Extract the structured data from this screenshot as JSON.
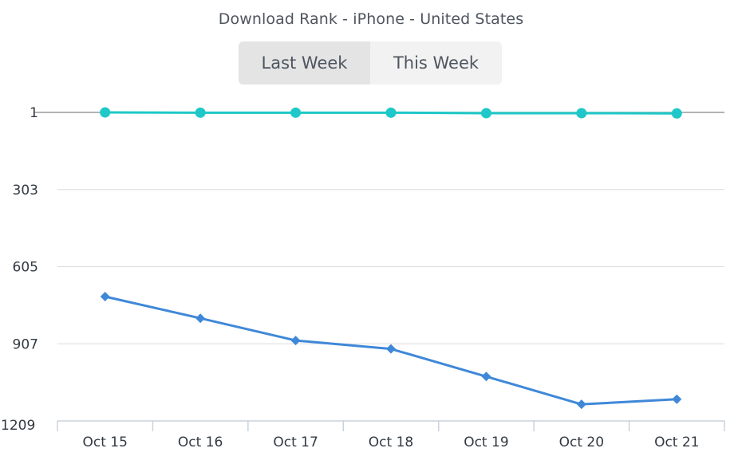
{
  "title": "Download Rank - iPhone - United States",
  "toggle": {
    "options": [
      "Last Week",
      "This Week"
    ],
    "selected": "Last Week"
  },
  "colors": {
    "series_top": "#1ec8c8",
    "series_bottom": "#3f88d8",
    "grid": "#dcdcdc",
    "baseline": "#9a9a9a",
    "axis": "#c9d3dc"
  },
  "chart_data": {
    "type": "line",
    "title": "Download Rank - iPhone - United States",
    "xlabel": "",
    "ylabel": "",
    "y_reversed": true,
    "ylim": [
      1,
      1209
    ],
    "yticks": [
      1,
      303,
      605,
      907,
      1209
    ],
    "categories": [
      "Oct 15",
      "Oct 16",
      "Oct 17",
      "Oct 18",
      "Oct 19",
      "Oct 20",
      "Oct 21"
    ],
    "grid": true,
    "legend": "none",
    "series": [
      {
        "marker": "circle",
        "color": "#1ec8c8",
        "values": [
          1,
          2,
          2,
          2,
          4,
          4,
          5
        ]
      },
      {
        "marker": "diamond",
        "color": "#3f88d8",
        "values": [
          722,
          807,
          894,
          927,
          1035,
          1144,
          1124
        ]
      }
    ]
  }
}
